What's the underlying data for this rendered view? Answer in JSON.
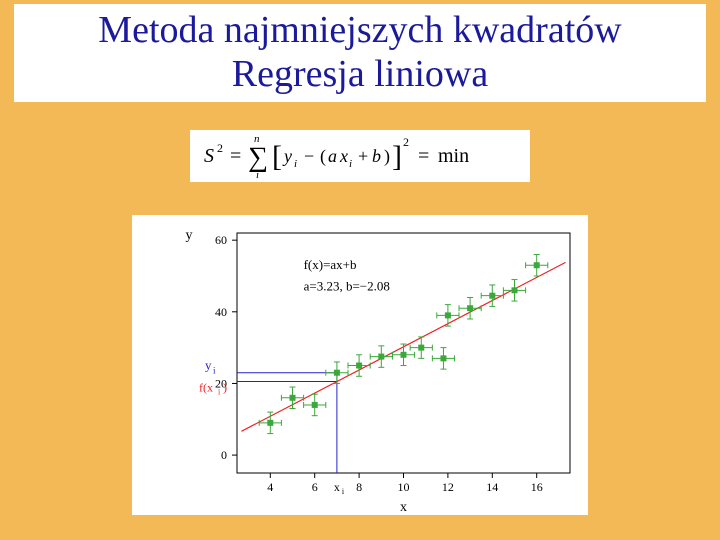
{
  "title": {
    "line1": "Metoda najmniejszych kwadratów",
    "line2": "Regresja liniowa"
  },
  "formula": {
    "lhs": "S",
    "sup": "2",
    "eq1": "=",
    "sum": "∑",
    "sum_top": "n",
    "sum_bot": "i",
    "lbracket": "[",
    "y": "y",
    "yi": "i",
    "minus": "−",
    "lparen": "(",
    "a": "a",
    "x": "x",
    "xi": "i",
    "plus": "+",
    "b": "b",
    "rparen": ")",
    "rbracket": "]",
    "sq": "2",
    "eq2": "=",
    "min": "min"
  },
  "chart": {
    "type": "scatter-with-fit",
    "xlabel": "x",
    "ylabel": "y",
    "func_label": "f(x)=ax+b",
    "a_label": "a=3.23, b=−2.08",
    "yi_label": "y",
    "yi_sub": "i",
    "fxi_label": "f(x",
    "fxi_sub": "i",
    "fxi_close": ")",
    "xi_tick": "x",
    "xi_tick_sub": "i",
    "xlim": [
      2.5,
      17.5
    ],
    "ylim": [
      -5,
      62
    ],
    "xticks": [
      4,
      6,
      8,
      10,
      12,
      14,
      16
    ],
    "yticks": [
      0,
      20,
      40,
      60
    ],
    "grid_color": "#e6e6e6",
    "axis_color": "#000000",
    "background_color": "#ffffff",
    "fit_line": {
      "color": "#ee2222",
      "width": 1.2,
      "a": 3.23,
      "b": -2.08
    },
    "marker_color": "#3aa83a",
    "marker_size": 3,
    "errorbar_color": "#3aa83a",
    "dropline_color": "#2222cc",
    "dropline_width": 1,
    "drop_x": 7,
    "points": [
      {
        "x": 4.0,
        "y": 9.0,
        "ex": 0.5,
        "ey": 3
      },
      {
        "x": 5.0,
        "y": 16.0,
        "ex": 0.5,
        "ey": 3
      },
      {
        "x": 6.0,
        "y": 14.0,
        "ex": 0.5,
        "ey": 3
      },
      {
        "x": 7.0,
        "y": 23.0,
        "ex": 0.5,
        "ey": 3
      },
      {
        "x": 8.0,
        "y": 25.0,
        "ex": 0.5,
        "ey": 3
      },
      {
        "x": 9.0,
        "y": 27.5,
        "ex": 0.5,
        "ey": 3
      },
      {
        "x": 10.0,
        "y": 28.0,
        "ex": 0.5,
        "ey": 3
      },
      {
        "x": 10.8,
        "y": 30.0,
        "ex": 0.5,
        "ey": 3
      },
      {
        "x": 11.8,
        "y": 27.0,
        "ex": 0.5,
        "ey": 3
      },
      {
        "x": 12.0,
        "y": 39.0,
        "ex": 0.5,
        "ey": 3
      },
      {
        "x": 13.0,
        "y": 41.0,
        "ex": 0.5,
        "ey": 3
      },
      {
        "x": 14.0,
        "y": 44.5,
        "ex": 0.5,
        "ey": 3
      },
      {
        "x": 15.0,
        "y": 46.0,
        "ex": 0.5,
        "ey": 3
      },
      {
        "x": 16.0,
        "y": 53.0,
        "ex": 0.5,
        "ey": 3
      }
    ],
    "fontsize_axis": 14,
    "fontsize_tick": 12,
    "fontsize_annot": 13
  }
}
